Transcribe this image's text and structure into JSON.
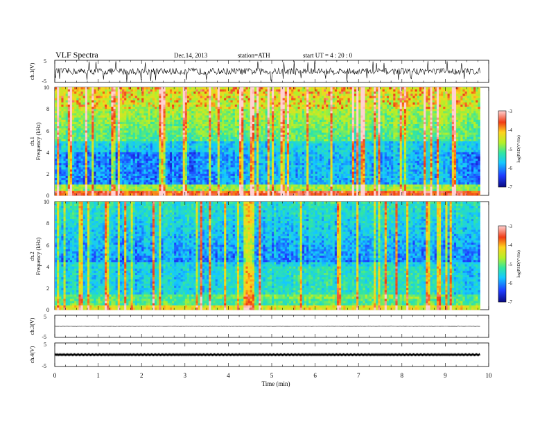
{
  "header": {
    "title": "VLF  Spectra",
    "date": "Dec.14, 2013",
    "station": "station=ATH",
    "start": "start  UT  =   4 : 20 : 0"
  },
  "colors": {
    "background": "#ffffff",
    "axis": "#000000",
    "colormap": [
      "#0a0a80",
      "#1e3cff",
      "#14c8ff",
      "#32e6a0",
      "#b4f028",
      "#ffd21e",
      "#f03c14",
      "#ffd2d2"
    ]
  },
  "chart_data": [
    {
      "type": "line",
      "panel": "ch1-waveform",
      "ylabel": "ch.1(V)",
      "ylim": [
        -5,
        5
      ],
      "yticks": [
        "5",
        "-5"
      ],
      "xlim": [
        0,
        10
      ],
      "x_units": "min",
      "baseline_v": 0,
      "typical_amplitude_v": 1.5,
      "spike_amplitude_v": 5
    },
    {
      "type": "heatmap",
      "panel": "ch1-spectrogram",
      "ylabel_channel": "ch.1",
      "ylabel": "Frequency  (kHz)",
      "ylim": [
        0,
        10
      ],
      "yticks": [
        "0",
        "2",
        "4",
        "6",
        "8",
        "10"
      ],
      "xlim": [
        0,
        9.8
      ],
      "colorbar": {
        "label": "log(PSD(V²/Hz)",
        "range": [
          -7,
          -3
        ],
        "ticks": [
          "-3",
          "-4",
          "-5",
          "-6",
          "-7"
        ]
      }
    },
    {
      "type": "heatmap",
      "panel": "ch2-spectrogram",
      "ylabel_channel": "ch.2",
      "ylabel": "Frequency  (kHz)",
      "ylim": [
        0,
        10
      ],
      "yticks": [
        "0",
        "2",
        "4",
        "6",
        "8",
        "10"
      ],
      "xlim": [
        0,
        9.8
      ],
      "colorbar": {
        "label": "log(PSD(V²/Hz)",
        "range": [
          -7,
          -3
        ],
        "ticks": [
          "-3",
          "-4",
          "-5",
          "-6",
          "-7"
        ]
      }
    },
    {
      "type": "line",
      "panel": "ch3-waveform",
      "ylabel": "ch.3(V)",
      "ylim": [
        -5,
        5
      ],
      "yticks": [
        "5",
        "-5"
      ],
      "xlim": [
        0,
        10
      ],
      "baseline_v": 0,
      "typical_amplitude_v": 0.05
    },
    {
      "type": "line",
      "panel": "ch4-waveform",
      "ylabel": "ch.4(V)",
      "ylim": [
        -5,
        5
      ],
      "yticks": [
        "5",
        "-5"
      ],
      "xlim": [
        0,
        10
      ],
      "xticks": [
        "0",
        "1",
        "2",
        "3",
        "4",
        "5",
        "6",
        "7",
        "8",
        "9",
        "10"
      ],
      "xlabel": "Time  (min)",
      "baseline_v": 0,
      "typical_amplitude_v": 0.3
    }
  ]
}
